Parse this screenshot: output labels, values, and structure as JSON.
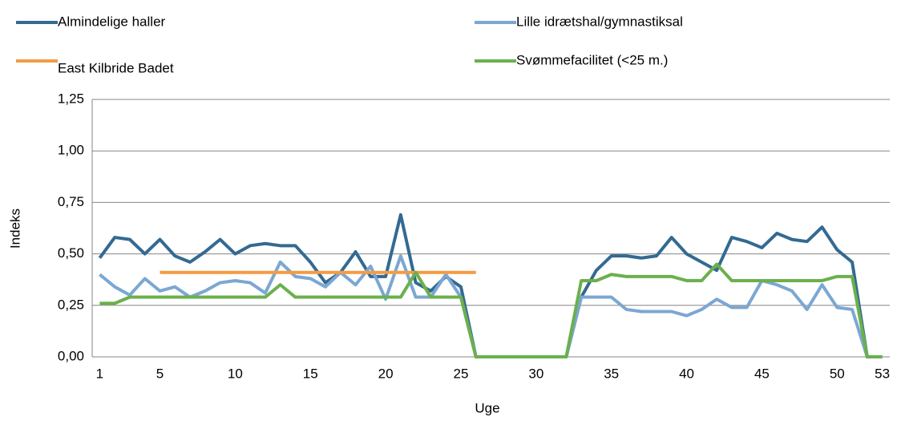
{
  "chart_data": {
    "type": "line",
    "x": [
      1,
      2,
      3,
      4,
      5,
      6,
      7,
      8,
      9,
      10,
      11,
      12,
      13,
      14,
      15,
      16,
      17,
      18,
      19,
      20,
      21,
      22,
      23,
      24,
      25,
      26,
      27,
      28,
      29,
      30,
      31,
      32,
      33,
      34,
      35,
      36,
      37,
      38,
      39,
      40,
      41,
      42,
      43,
      44,
      45,
      46,
      47,
      48,
      49,
      50,
      51,
      52,
      53
    ],
    "xlabel": "Uge",
    "ylabel": "Indeks",
    "xlim": [
      0.5,
      53.5
    ],
    "xticks": [
      1,
      5,
      10,
      15,
      20,
      25,
      30,
      35,
      40,
      45,
      50,
      53
    ],
    "ylim": [
      0,
      1.25
    ],
    "yticks": [
      {
        "value": 0,
        "label": "0,00"
      },
      {
        "value": 0.25,
        "label": "0,25"
      },
      {
        "value": 0.5,
        "label": "0,50"
      },
      {
        "value": 0.75,
        "label": "0,75"
      },
      {
        "value": 1,
        "label": "1,00"
      },
      {
        "value": 1.25,
        "label": "1,25"
      }
    ],
    "grid": true,
    "legend": "top",
    "series": [
      {
        "name": "Almindelige haller",
        "color": "#336a92",
        "values": [
          0.48,
          0.58,
          0.57,
          0.5,
          0.57,
          0.49,
          0.46,
          0.51,
          0.57,
          0.5,
          0.54,
          0.55,
          0.54,
          0.54,
          0.46,
          0.36,
          0.41,
          0.51,
          0.39,
          0.39,
          0.69,
          0.36,
          0.32,
          0.39,
          0.34,
          0,
          0,
          0,
          0,
          0,
          0,
          0,
          0.29,
          0.42,
          0.49,
          0.49,
          0.48,
          0.49,
          0.58,
          0.5,
          0.46,
          0.42,
          0.58,
          0.56,
          0.53,
          0.6,
          0.57,
          0.56,
          0.63,
          0.52,
          0.46,
          0,
          0
        ]
      },
      {
        "name": "Lille idrætshal/gymnastiksal",
        "color": "#7ba7d3",
        "values": [
          0.4,
          0.34,
          0.3,
          0.38,
          0.32,
          0.34,
          0.29,
          0.32,
          0.36,
          0.37,
          0.36,
          0.31,
          0.46,
          0.39,
          0.38,
          0.34,
          0.41,
          0.35,
          0.44,
          0.28,
          0.49,
          0.29,
          0.29,
          0.4,
          0.29,
          0,
          0,
          0,
          0,
          0,
          0,
          0,
          0.29,
          0.29,
          0.29,
          0.23,
          0.22,
          0.22,
          0.22,
          0.2,
          0.23,
          0.28,
          0.24,
          0.24,
          0.37,
          0.35,
          0.32,
          0.23,
          0.35,
          0.24,
          0.23,
          0,
          0
        ]
      },
      {
        "name": "East Kilbride Badet",
        "color": "#f39c44",
        "values": [
          null,
          null,
          null,
          null,
          0.41,
          0.41,
          0.41,
          0.41,
          0.41,
          0.41,
          0.41,
          0.41,
          0.41,
          0.41,
          0.41,
          0.41,
          0.41,
          0.41,
          0.41,
          0.41,
          0.41,
          0.41,
          0.41,
          0.41,
          0.41,
          0.41,
          null,
          null,
          null,
          null,
          null,
          null,
          null,
          null,
          null,
          null,
          null,
          null,
          null,
          null,
          null,
          null,
          null,
          null,
          null,
          null,
          null,
          null,
          null,
          null,
          null,
          null,
          null
        ]
      },
      {
        "name": "Svømmefacilitet (<25 m.)",
        "color": "#6bb04c",
        "values": [
          0.26,
          0.26,
          0.29,
          0.29,
          0.29,
          0.29,
          0.29,
          0.29,
          0.29,
          0.29,
          0.29,
          0.29,
          0.35,
          0.29,
          0.29,
          0.29,
          0.29,
          0.29,
          0.29,
          0.29,
          0.29,
          0.41,
          0.29,
          0.29,
          0.29,
          0,
          0,
          0,
          0,
          0,
          0,
          0,
          0.37,
          0.37,
          0.4,
          0.39,
          0.39,
          0.39,
          0.39,
          0.37,
          0.37,
          0.45,
          0.37,
          0.37,
          0.37,
          0.37,
          0.37,
          0.37,
          0.37,
          0.39,
          0.39,
          0,
          0
        ]
      }
    ]
  }
}
